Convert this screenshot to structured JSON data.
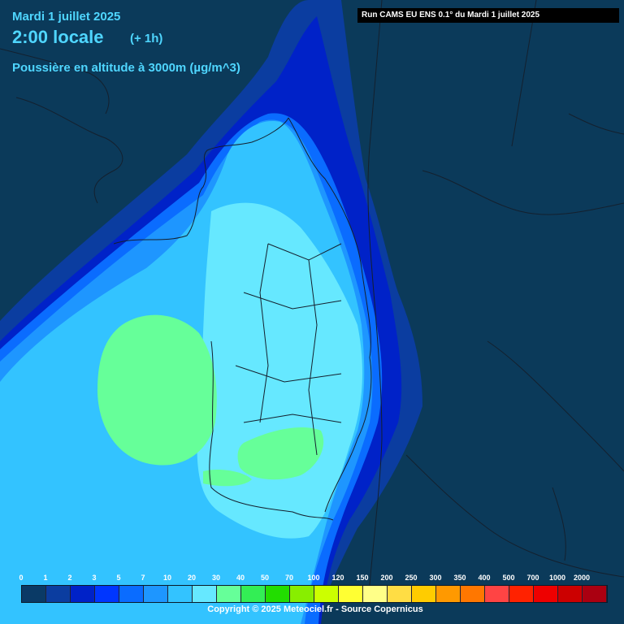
{
  "header": {
    "date": "Mardi 1 juillet 2025",
    "time": "2:00 locale",
    "lead": "(+ 1h)",
    "parameter": "Poussière en altitude à 3000m (µg/m^3)"
  },
  "run_label": "Run CAMS EU ENS 0.1° du Mardi 1 juillet 2025",
  "copyright": "Copyright © 2025 Meteociel.fr - Source Copernicus",
  "legend": {
    "ticks": [
      "0",
      "1",
      "2",
      "3",
      "5",
      "7",
      "10",
      "20",
      "30",
      "40",
      "50",
      "70",
      "100",
      "120",
      "150",
      "200",
      "250",
      "300",
      "350",
      "400",
      "500",
      "700",
      "1000",
      "2000"
    ],
    "colors": [
      "#0a3a66",
      "#0b3da0",
      "#0022c8",
      "#0036ff",
      "#0a6cff",
      "#1e96ff",
      "#33c3ff",
      "#66e8ff",
      "#66ff99",
      "#33ee55",
      "#22dd00",
      "#88ee00",
      "#ccff00",
      "#ffff33",
      "#ffff88",
      "#ffdd44",
      "#ffcc00",
      "#ff9900",
      "#ff7700",
      "#ff4444",
      "#ff2200",
      "#ee0000",
      "#cc0000",
      "#aa0011"
    ]
  },
  "map_colors": {
    "land_background": "#0b3a5a",
    "borders": "#14202e"
  }
}
